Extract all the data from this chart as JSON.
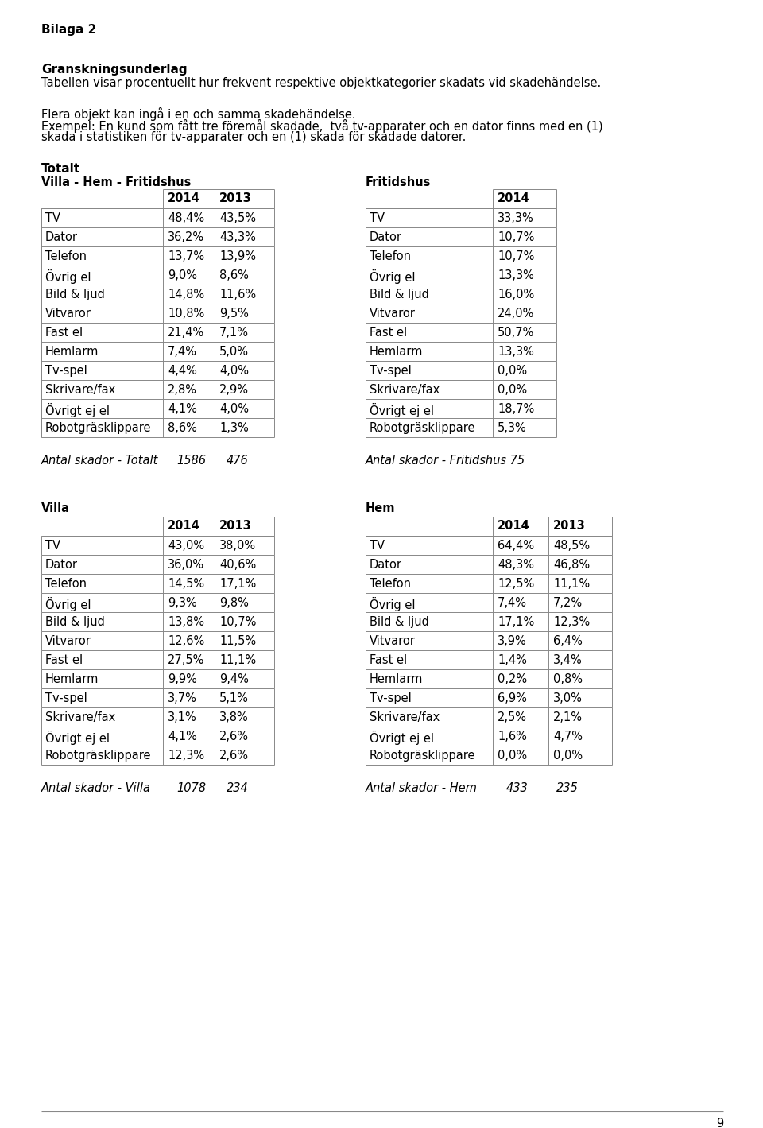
{
  "page_title": "Bilaga 2",
  "section_title": "Granskningsunderlag",
  "para1": "Tabellen visar procentuellt hur frekvent respektive objektkategorier skadats vid skadehändelse.",
  "para2": "Flera objekt kan ingå i en och samma skadehändelse.",
  "para3a": "Exempel: En kund som fått tre föremål skadade,  två tv-apparater och en dator finns med en (1)",
  "para3b": "skada i statistiken för tv-apparater och en (1) skada för skadade datorer.",
  "totalt_label": "Totalt",
  "villa_hem_label": "Villa - Hem - Fritidshus",
  "fritidshus_label": "Fritidshus",
  "villa_label": "Villa",
  "hem_label": "Hem",
  "totalt_rows": [
    "TV",
    "Dator",
    "Telefon",
    "Övrig el",
    "Bild & ljud",
    "Vitvaror",
    "Fast el",
    "Hemlarm",
    "Tv-spel",
    "Skrivare/fax",
    "Övrigt ej el",
    "Robotgräsklippare"
  ],
  "totalt_2014": [
    "48,4%",
    "36,2%",
    "13,7%",
    "9,0%",
    "14,8%",
    "10,8%",
    "21,4%",
    "7,4%",
    "4,4%",
    "2,8%",
    "4,1%",
    "8,6%"
  ],
  "totalt_2013": [
    "43,5%",
    "43,3%",
    "13,9%",
    "8,6%",
    "11,6%",
    "9,5%",
    "7,1%",
    "5,0%",
    "4,0%",
    "2,9%",
    "4,0%",
    "1,3%"
  ],
  "fritidshus_rows": [
    "TV",
    "Dator",
    "Telefon",
    "Övrig el",
    "Bild & ljud",
    "Vitvaror",
    "Fast el",
    "Hemlarm",
    "Tv-spel",
    "Skrivare/fax",
    "Övrigt ej el",
    "Robotgräsklippare"
  ],
  "fritidshus_2014": [
    "33,3%",
    "10,7%",
    "10,7%",
    "13,3%",
    "16,0%",
    "24,0%",
    "50,7%",
    "13,3%",
    "0,0%",
    "0,0%",
    "18,7%",
    "5,3%"
  ],
  "villa_rows": [
    "TV",
    "Dator",
    "Telefon",
    "Övrig el",
    "Bild & ljud",
    "Vitvaror",
    "Fast el",
    "Hemlarm",
    "Tv-spel",
    "Skrivare/fax",
    "Övrigt ej el",
    "Robotgräsklippare"
  ],
  "villa_2014": [
    "43,0%",
    "36,0%",
    "14,5%",
    "9,3%",
    "13,8%",
    "12,6%",
    "27,5%",
    "9,9%",
    "3,7%",
    "3,1%",
    "4,1%",
    "12,3%"
  ],
  "villa_2013": [
    "38,0%",
    "40,6%",
    "17,1%",
    "9,8%",
    "10,7%",
    "11,5%",
    "11,1%",
    "9,4%",
    "5,1%",
    "3,8%",
    "2,6%",
    "2,6%"
  ],
  "hem_rows": [
    "TV",
    "Dator",
    "Telefon",
    "Övrig el",
    "Bild & ljud",
    "Vitvaror",
    "Fast el",
    "Hemlarm",
    "Tv-spel",
    "Skrivare/fax",
    "Övrigt ej el",
    "Robotgräsklippare"
  ],
  "hem_2014": [
    "64,4%",
    "48,3%",
    "12,5%",
    "7,4%",
    "17,1%",
    "3,9%",
    "1,4%",
    "0,2%",
    "6,9%",
    "2,5%",
    "1,6%",
    "0,0%"
  ],
  "hem_2013": [
    "48,5%",
    "46,8%",
    "11,1%",
    "7,2%",
    "12,3%",
    "6,4%",
    "3,4%",
    "0,8%",
    "3,0%",
    "2,1%",
    "4,7%",
    "0,0%"
  ],
  "page_num": "9",
  "bg_color": "#ffffff",
  "border_color": "#888888"
}
